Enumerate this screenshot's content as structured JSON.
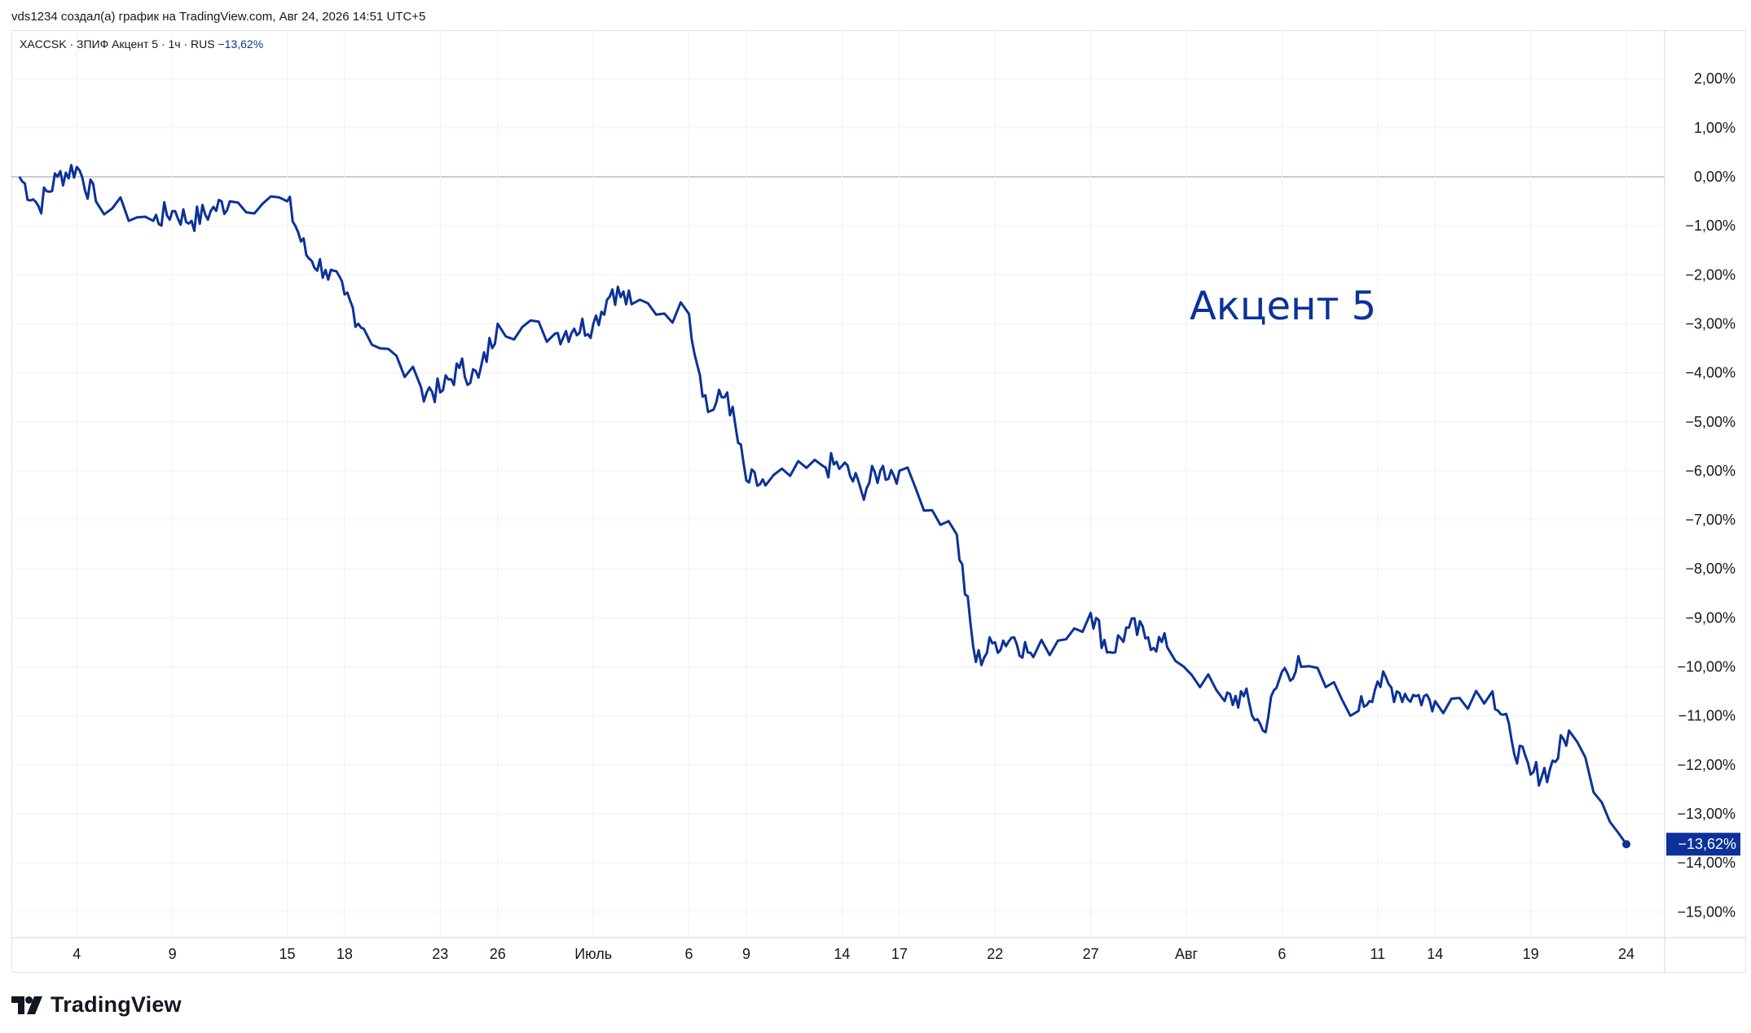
{
  "header": {
    "attribution": "vds1234 создал(а) график на TradingView.com, Авг 24, 2026 14:51 UTC+5"
  },
  "legend": {
    "prefix": "XACCSK · ЗПИФ Акцент 5 · 1ч · RUS",
    "change": "−13,62%"
  },
  "colors": {
    "line": "#0c3299",
    "grid": "#eef0f4",
    "zero_line": "#9598a1",
    "text": "#131722"
  },
  "branding": {
    "text": "TradingView",
    "icon": "tradingview-logo-icon"
  },
  "chart_data": {
    "type": "line",
    "title": "Акцент 5",
    "ylabel": "",
    "xlabel": "",
    "y_unit": "%",
    "ylim": [
      -15.5,
      3.0
    ],
    "y_ticks": [
      2,
      1,
      0,
      -1,
      -2,
      -3,
      -4,
      -5,
      -6,
      -7,
      -8,
      -9,
      -10,
      -11,
      -12,
      -13,
      -14,
      -15
    ],
    "y_tick_labels": [
      "2,00%",
      "1,00%",
      "0,00%",
      "−1,00%",
      "−2,00%",
      "−3,00%",
      "−4,00%",
      "−5,00%",
      "−6,00%",
      "−7,00%",
      "−8,00%",
      "−9,00%",
      "−10,00%",
      "−11,00%",
      "−12,00%",
      "−13,00%",
      "−14,00%",
      "−15,00%"
    ],
    "x_ticks": [
      {
        "label": "4",
        "x": "2026-06-04"
      },
      {
        "label": "9",
        "x": "2026-06-09"
      },
      {
        "label": "15",
        "x": "2026-06-15"
      },
      {
        "label": "18",
        "x": "2026-06-18"
      },
      {
        "label": "23",
        "x": "2026-06-23"
      },
      {
        "label": "26",
        "x": "2026-06-26"
      },
      {
        "label": "Июль",
        "x": "2026-07-01"
      },
      {
        "label": "6",
        "x": "2026-07-06"
      },
      {
        "label": "9",
        "x": "2026-07-09"
      },
      {
        "label": "14",
        "x": "2026-07-14"
      },
      {
        "label": "17",
        "x": "2026-07-17"
      },
      {
        "label": "22",
        "x": "2026-07-22"
      },
      {
        "label": "27",
        "x": "2026-07-27"
      },
      {
        "label": "Авг",
        "x": "2026-08-01"
      },
      {
        "label": "6",
        "x": "2026-08-06"
      },
      {
        "label": "11",
        "x": "2026-08-11"
      },
      {
        "label": "14",
        "x": "2026-08-14"
      },
      {
        "label": "19",
        "x": "2026-08-19"
      },
      {
        "label": "24",
        "x": "2026-08-24"
      }
    ],
    "grid": true,
    "last_value": -13.62,
    "last_value_label": "−13,62%",
    "series": [
      {
        "x": [
          "2026-06-01",
          "2026-06-02",
          "2026-06-03",
          "2026-06-04",
          "2026-06-05",
          "2026-06-08",
          "2026-06-09",
          "2026-06-10",
          "2026-06-11",
          "2026-06-12",
          "2026-06-15",
          "2026-06-16",
          "2026-06-17",
          "2026-06-18",
          "2026-06-19",
          "2026-06-22",
          "2026-06-23",
          "2026-06-24",
          "2026-06-25",
          "2026-06-26",
          "2026-06-29",
          "2026-06-30",
          "2026-07-01",
          "2026-07-02",
          "2026-07-03",
          "2026-07-06",
          "2026-07-07",
          "2026-07-08",
          "2026-07-09",
          "2026-07-10",
          "2026-07-13",
          "2026-07-14",
          "2026-07-15",
          "2026-07-16",
          "2026-07-17",
          "2026-07-20",
          "2026-07-21",
          "2026-07-22",
          "2026-07-23",
          "2026-07-24",
          "2026-07-27",
          "2026-07-28",
          "2026-07-29",
          "2026-07-30",
          "2026-07-31",
          "2026-08-03",
          "2026-08-04",
          "2026-08-05",
          "2026-08-06",
          "2026-08-07",
          "2026-08-10",
          "2026-08-11",
          "2026-08-12",
          "2026-08-13",
          "2026-08-14",
          "2026-08-17",
          "2026-08-18",
          "2026-08-19",
          "2026-08-20",
          "2026-08-21",
          "2026-08-24"
        ],
        "values": [
          0.0,
          -0.6,
          0.0,
          0.2,
          -0.5,
          -0.9,
          -0.7,
          -0.9,
          -0.7,
          -0.5,
          -0.5,
          -1.6,
          -1.9,
          -2.4,
          -3.1,
          -4.3,
          -4.4,
          -3.9,
          -4.1,
          -3.0,
          -3.2,
          -3.1,
          -3.0,
          -2.3,
          -2.6,
          -2.8,
          -4.8,
          -4.4,
          -6.2,
          -6.3,
          -5.9,
          -5.9,
          -6.4,
          -6.0,
          -6.0,
          -7.3,
          -9.9,
          -9.5,
          -9.4,
          -9.8,
          -8.9,
          -9.7,
          -9.2,
          -9.4,
          -9.6,
          -10.7,
          -10.6,
          -11.3,
          -10.1,
          -10.0,
          -10.9,
          -10.3,
          -10.5,
          -10.6,
          -10.7,
          -10.5,
          -11.5,
          -12.2,
          -12.1,
          -11.3,
          -13.62
        ]
      }
    ]
  }
}
